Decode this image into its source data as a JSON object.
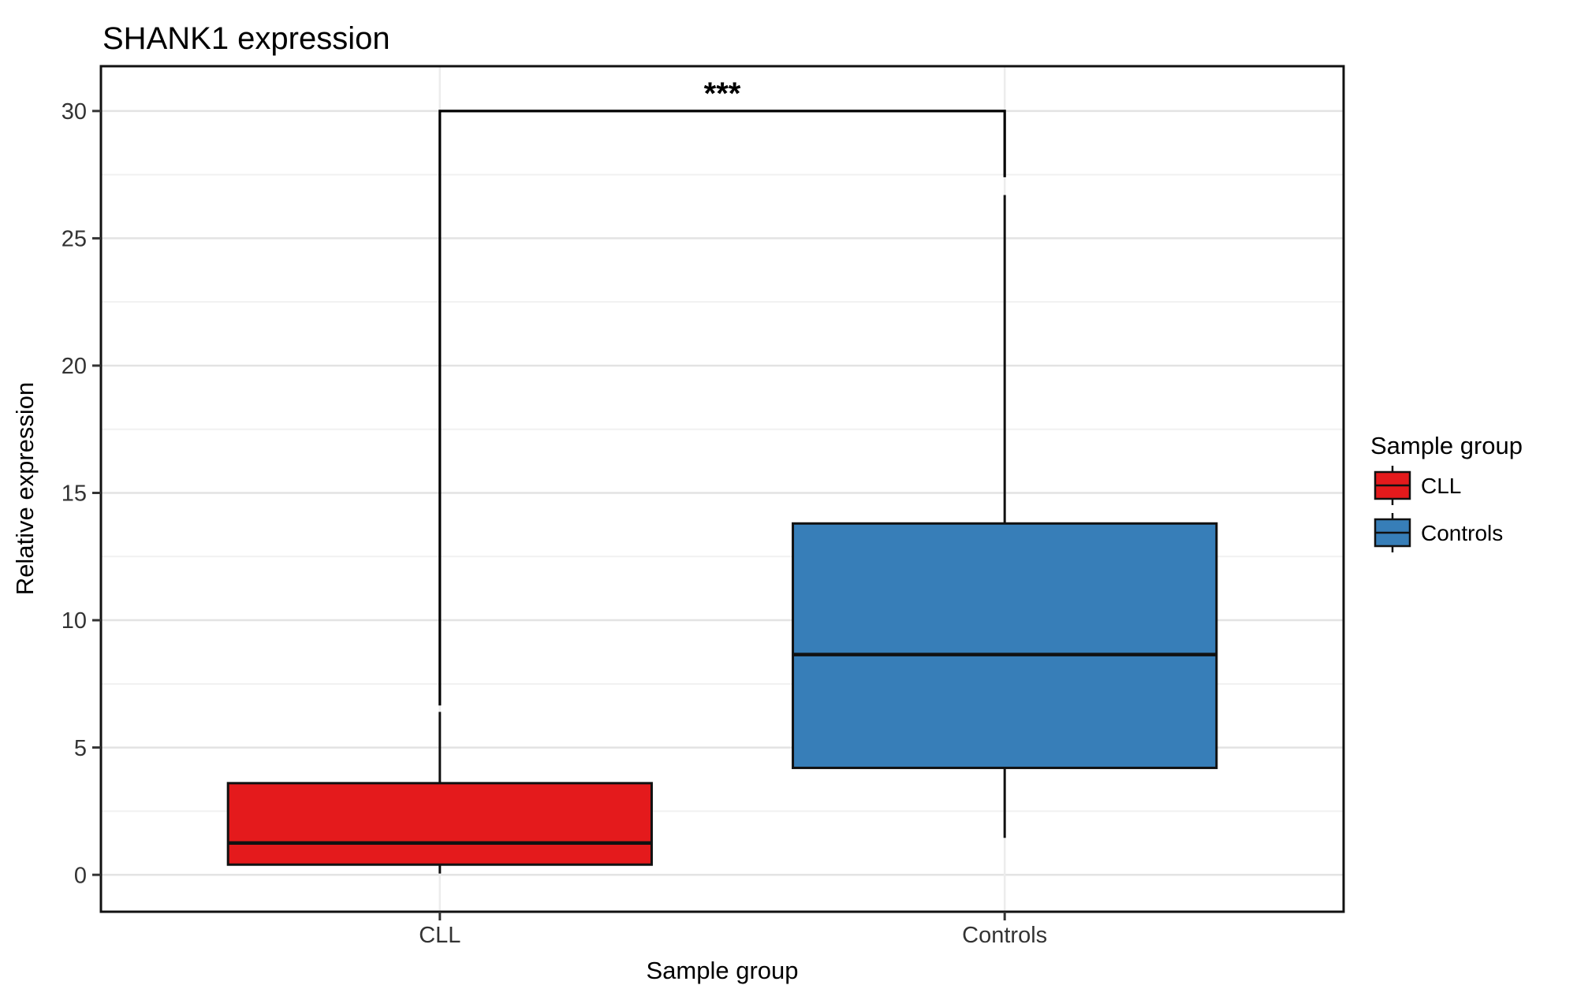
{
  "chart_data": {
    "type": "box",
    "title": "SHANK1 expression",
    "xlabel": "Sample group",
    "ylabel": "Relative expression",
    "ylim": [
      -1.45,
      31.76
    ],
    "yticks": [
      0,
      5,
      10,
      15,
      20,
      25,
      30
    ],
    "yticks_minor": [
      2.5,
      7.5,
      12.5,
      17.5,
      22.5,
      27.5
    ],
    "categories": [
      "CLL",
      "Controls"
    ],
    "series": [
      {
        "name": "CLL",
        "fill": "#e41a1c",
        "whisker_low": 0.05,
        "q1": 0.4,
        "median": 1.25,
        "q3": 3.6,
        "whisker_high": 6.4
      },
      {
        "name": "Controls",
        "fill": "#377eb8",
        "whisker_low": 1.45,
        "q1": 4.2,
        "median": 8.65,
        "q3": 13.8,
        "whisker_high": 26.7
      }
    ],
    "significance": {
      "label": "***",
      "bar_y": 30,
      "between": [
        "CLL",
        "Controls"
      ],
      "leg_ends": [
        6.65,
        27.4
      ]
    },
    "legend": {
      "title": "Sample group",
      "position": "right",
      "entries": [
        {
          "label": "CLL",
          "color": "#e41a1c"
        },
        {
          "label": "Controls",
          "color": "#377eb8"
        }
      ]
    },
    "grid": {
      "show_major": true,
      "show_minor": true
    },
    "colors": {
      "cll_fill": "#e41a1c",
      "controls_fill": "#377eb8",
      "box_outline": "#111111",
      "panel_border": "#111111",
      "grid_major": "#e3e3e3",
      "grid_minor": "#f1f1f1",
      "grid_vertical": "#ececec",
      "axis_text": "#333333",
      "tick_mark": "#333333",
      "background": "#ffffff"
    }
  }
}
